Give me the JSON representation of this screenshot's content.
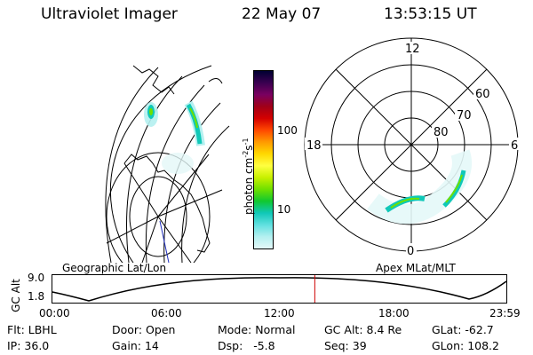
{
  "header": {
    "title": "Ultraviolet Imager",
    "date": "22 May 07",
    "time": "13:53:15 UT"
  },
  "colorbar": {
    "unit_prefix": "photon cm",
    "unit_exp1": "-2",
    "unit_mid": "s",
    "unit_exp2": "-1",
    "tick_100": "100",
    "tick_10": "10",
    "colors": [
      "#000033",
      "#3a0050",
      "#7a0060",
      "#a00018",
      "#d40000",
      "#ff4800",
      "#ff9a00",
      "#ffd800",
      "#ffff40",
      "#c8f000",
      "#6ee000",
      "#10c830",
      "#10c8b8",
      "#60e0e0",
      "#b4f0f0",
      "#e4f8f8"
    ]
  },
  "polar_plot": {
    "mlt_top": "12",
    "mlt_left": "18",
    "mlt_right": "6",
    "mlt_bottom": "0",
    "lat_60": "60",
    "lat_70": "70",
    "lat_80": "80"
  },
  "timeline": {
    "left_label": "Geographic Lat/Lon",
    "right_label": "Apex MLat/MLT",
    "y_axis_label": "GC Alt",
    "y_high": "9.0",
    "y_low": "1.8",
    "x_ticks": [
      "00:00",
      "06:00",
      "12:00",
      "18:00",
      "23:59"
    ],
    "current_time_fraction": 0.578,
    "marker_color": "#d00000"
  },
  "info": {
    "flt_label": "Flt:",
    "flt_value": "LBHL",
    "ip_label": "IP:",
    "ip_value": "36.0",
    "door_label": "Door:",
    "door_value": "Open",
    "gain_label": "Gain:",
    "gain_value": "14",
    "mode_label": "Mode:",
    "mode_value": "Normal",
    "dsp_label": "Dsp:",
    "dsp_value": "-5.8",
    "gcalt_label": "GC Alt:",
    "gcalt_value": "8.4 Re",
    "seq_label": "Seq:",
    "seq_value": "39",
    "glat_label": "GLat:",
    "glat_value": "-62.7",
    "glon_label": "GLon:",
    "glon_value": "108.2"
  }
}
